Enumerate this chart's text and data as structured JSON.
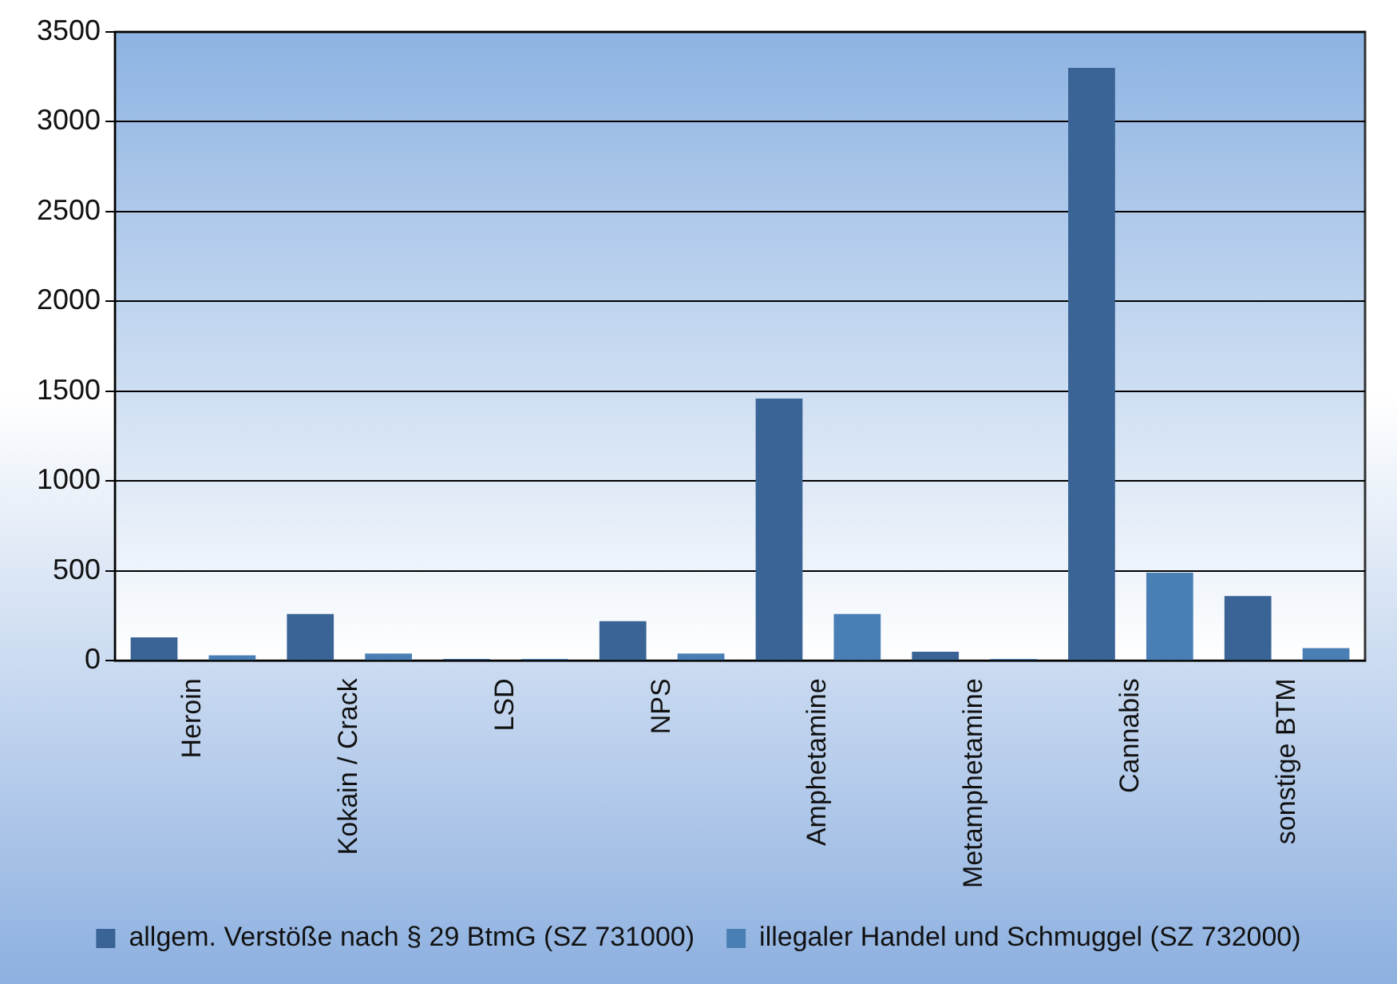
{
  "chart_data": {
    "type": "bar",
    "categories": [
      "Heroin",
      "Kokain / Crack",
      "LSD",
      "NPS",
      "Amphetamine",
      "Metamphetamine",
      "Cannabis",
      "sonstige BTM"
    ],
    "series": [
      {
        "name": "allgem. Verstöße nach § 29 BtmG (SZ 731000)",
        "color": "#3a6496",
        "values": [
          130,
          260,
          10,
          220,
          1460,
          50,
          3300,
          360
        ]
      },
      {
        "name": "illegaler Handel und Schmuggel (SZ 732000)",
        "color": "#4a7fb5",
        "values": [
          30,
          40,
          10,
          40,
          260,
          10,
          490,
          70
        ]
      }
    ],
    "ylim": [
      0,
      3500
    ],
    "yticks": [
      0,
      500,
      1000,
      1500,
      2000,
      2500,
      3000,
      3500
    ],
    "grid": "y",
    "legend": "bottom"
  }
}
